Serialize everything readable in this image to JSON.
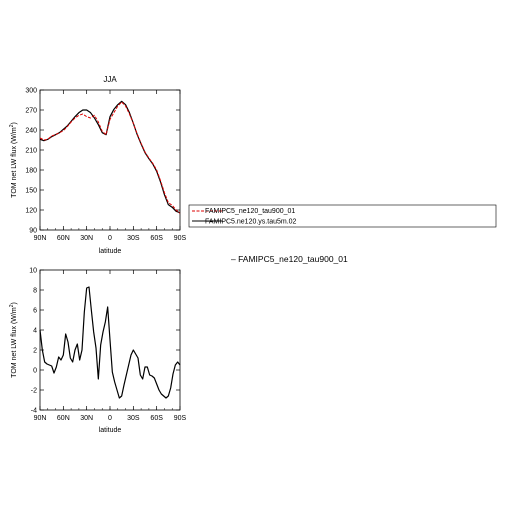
{
  "chart_data": [
    {
      "type": "line",
      "title": "JJA",
      "xlabel": "latitude",
      "ylabel": "TOM net LW flux (W/m",
      "ylabel_sup": "2",
      "ylabel_end": ")",
      "xlim": [
        90,
        -90
      ],
      "ylim": [
        90,
        300
      ],
      "x_ticks": [
        "90N",
        "60N",
        "30N",
        "0",
        "30S",
        "60S",
        "90S"
      ],
      "y_ticks": [
        "300",
        "270",
        "240",
        "210",
        "180",
        "150",
        "120",
        "90"
      ],
      "legend": "right-outside",
      "x": [
        90,
        85,
        80,
        75,
        70,
        65,
        60,
        55,
        50,
        45,
        40,
        35,
        30,
        25,
        20,
        15,
        10,
        5,
        0,
        -5,
        -10,
        -15,
        -20,
        -25,
        -30,
        -35,
        -40,
        -45,
        -50,
        -55,
        -60,
        -65,
        -70,
        -75,
        -80,
        -85,
        -90
      ],
      "series": [
        {
          "name": "FAMIPC5_ne120_tau900_01",
          "color": "#dd0000",
          "dashed": true,
          "values": [
            228,
            225,
            226,
            231,
            233,
            236,
            239,
            245,
            252,
            258,
            262,
            264,
            260,
            258,
            262,
            252,
            238,
            233,
            256,
            266,
            276,
            282,
            276,
            264,
            250,
            234,
            220,
            207,
            198,
            190,
            180,
            164,
            146,
            131,
            127,
            120,
            115
          ]
        },
        {
          "name": "FAMIPC5.ne120.ys.tau5m.02",
          "color": "#000000",
          "dashed": false,
          "values": [
            226,
            224,
            226,
            230,
            233,
            236,
            241,
            246,
            253,
            260,
            266,
            270,
            270,
            266,
            258,
            248,
            236,
            233,
            260,
            271,
            278,
            283,
            278,
            266,
            250,
            233,
            219,
            206,
            197,
            189,
            178,
            162,
            143,
            128,
            124,
            118,
            116
          ]
        }
      ]
    },
    {
      "type": "line",
      "title": "",
      "xlabel": "latitude",
      "ylabel": "TOM net LW flux (W/m",
      "ylabel_sup": "2",
      "ylabel_end": ")",
      "xlim": [
        90,
        -90
      ],
      "ylim": [
        -4,
        10
      ],
      "x_ticks": [
        "90N",
        "60N",
        "30N",
        "0",
        "30S",
        "60S",
        "90S"
      ],
      "y_ticks": [
        "10",
        "8",
        "6",
        "4",
        "2",
        "0",
        "-2",
        "-4"
      ],
      "subtitle": "– FAMIPC5_ne120_tau900_01",
      "x": [
        90,
        87,
        84,
        81,
        78,
        75,
        72,
        69,
        66,
        63,
        60,
        57,
        54,
        51,
        48,
        45,
        42,
        39,
        36,
        33,
        30,
        27,
        24,
        21,
        18,
        15,
        12,
        9,
        6,
        3,
        0,
        -3,
        -6,
        -9,
        -12,
        -15,
        -18,
        -21,
        -24,
        -27,
        -30,
        -33,
        -36,
        -39,
        -42,
        -45,
        -48,
        -51,
        -54,
        -57,
        -60,
        -63,
        -66,
        -69,
        -72,
        -75,
        -78,
        -81,
        -84,
        -87,
        -90
      ],
      "series": [
        {
          "name": "",
          "color": "#000000",
          "dashed": false,
          "values": [
            4.0,
            2.0,
            0.8,
            0.6,
            0.5,
            0.4,
            -0.3,
            0.3,
            1.3,
            1.0,
            1.5,
            3.6,
            2.8,
            1.2,
            0.8,
            2.0,
            2.6,
            1.0,
            2.0,
            5.8,
            8.2,
            8.3,
            6.0,
            3.8,
            2.2,
            -0.9,
            2.5,
            3.8,
            4.8,
            6.3,
            3.0,
            -0.2,
            -1.2,
            -2.0,
            -2.8,
            -2.6,
            -1.5,
            -0.5,
            0.5,
            1.5,
            2.0,
            1.6,
            1.2,
            -0.5,
            -0.9,
            0.3,
            0.3,
            -0.5,
            -0.6,
            -0.8,
            -1.4,
            -2.0,
            -2.4,
            -2.6,
            -2.8,
            -2.6,
            -1.8,
            -0.4,
            0.5,
            0.8,
            0.5
          ]
        }
      ]
    }
  ]
}
